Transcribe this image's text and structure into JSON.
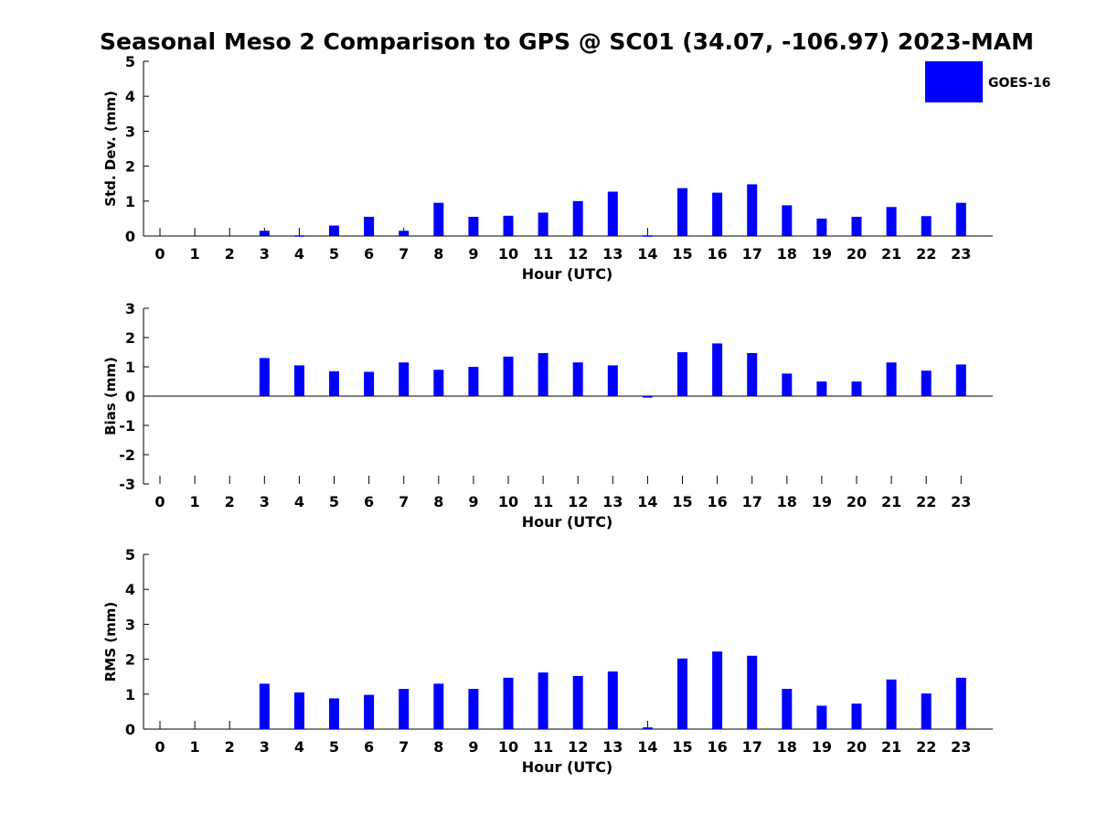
{
  "chart_data": {
    "type": "bar",
    "title": "Seasonal Meso 2 Comparison to GPS @ SC01 (34.07, -106.97) 2023-MAM",
    "legend": {
      "position": "top-right",
      "entries": [
        {
          "name": "GOES-16",
          "color": "#0000ff"
        }
      ]
    },
    "bar_color": "#0000ff",
    "categories": [
      "0",
      "1",
      "2",
      "3",
      "4",
      "5",
      "6",
      "7",
      "8",
      "9",
      "10",
      "11",
      "12",
      "13",
      "14",
      "15",
      "16",
      "17",
      "18",
      "19",
      "20",
      "21",
      "22",
      "23"
    ],
    "xlabel": "Hour (UTC)",
    "panels": [
      {
        "ylabel": "Std. Dev. (mm)",
        "ylim": [
          0,
          5
        ],
        "yticks": [
          "0",
          "1",
          "2",
          "3",
          "4",
          "5"
        ],
        "series": [
          {
            "name": "GOES-16",
            "values": [
              0,
              0,
              0,
              0.15,
              0.02,
              0.3,
              0.55,
              0.15,
              0.95,
              0.55,
              0.58,
              0.67,
              1.0,
              1.27,
              0.02,
              1.37,
              1.24,
              1.48,
              0.88,
              0.5,
              0.55,
              0.83,
              0.57,
              0.95
            ]
          }
        ]
      },
      {
        "ylabel": "Bias (mm)",
        "ylim": [
          -3,
          3
        ],
        "yticks": [
          "-3",
          "-2",
          "-1",
          "0",
          "1",
          "2",
          "3"
        ],
        "series": [
          {
            "name": "GOES-16",
            "values": [
              0,
              0,
              0,
              1.3,
              1.05,
              0.85,
              0.83,
              1.15,
              0.9,
              1.0,
              1.35,
              1.47,
              1.15,
              1.05,
              -0.05,
              1.5,
              1.8,
              1.47,
              0.77,
              0.5,
              0.5,
              1.15,
              0.87,
              1.08
            ]
          }
        ]
      },
      {
        "ylabel": "RMS (mm)",
        "ylim": [
          0,
          5
        ],
        "yticks": [
          "0",
          "1",
          "2",
          "3",
          "4",
          "5"
        ],
        "series": [
          {
            "name": "GOES-16",
            "values": [
              0,
              0,
              0,
              1.3,
              1.05,
              0.88,
              0.98,
              1.15,
              1.3,
              1.15,
              1.47,
              1.62,
              1.52,
              1.65,
              0.05,
              2.02,
              2.22,
              2.1,
              1.15,
              0.67,
              0.73,
              1.42,
              1.02,
              1.47
            ]
          }
        ]
      }
    ]
  }
}
